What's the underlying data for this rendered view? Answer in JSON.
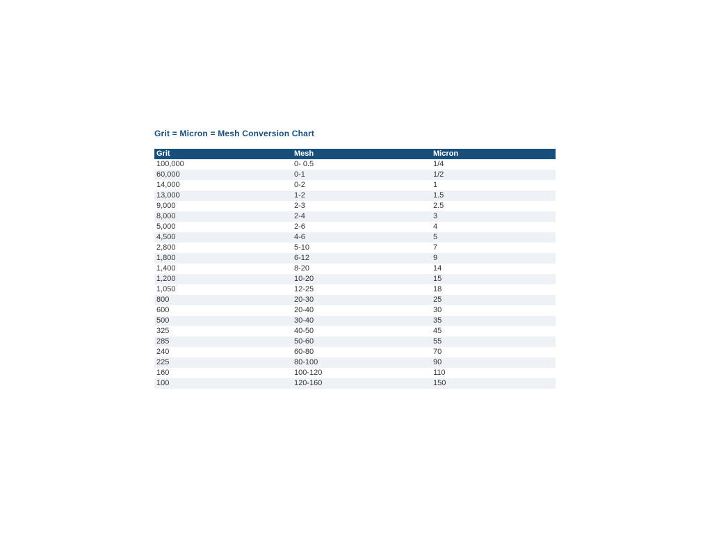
{
  "page": {
    "title": "Grit = Micron = Mesh Conversion Chart"
  },
  "colors": {
    "title_text": "#164e7c",
    "header_bg": "#164e7c",
    "header_text": "#ffffff",
    "row_bg": "#ffffff",
    "row_alt_bg": "#eef1f5",
    "body_text": "#333333",
    "page_bg": "#ffffff"
  },
  "chart_data": {
    "type": "table",
    "title": "Grit = Micron = Mesh Conversion Chart",
    "columns": [
      "Grit",
      "Mesh",
      "Micron"
    ],
    "column_keys": [
      "grit",
      "mesh",
      "micron"
    ],
    "rows": [
      [
        "100,000",
        "0- 0.5",
        "1/4"
      ],
      [
        "60,000",
        "0-1",
        "1/2"
      ],
      [
        "14,000",
        "0-2",
        "1"
      ],
      [
        "13,000",
        "1-2",
        "1.5"
      ],
      [
        "9,000",
        "2-3",
        "2.5"
      ],
      [
        "8,000",
        "2-4",
        "3"
      ],
      [
        "5,000",
        "2-6",
        "4"
      ],
      [
        "4,500",
        "4-6",
        "5"
      ],
      [
        "2,800",
        "5-10",
        "7"
      ],
      [
        "1,800",
        "6-12",
        "9"
      ],
      [
        "1,400",
        "8-20",
        "14"
      ],
      [
        "1,200",
        "10-20",
        "15"
      ],
      [
        "1,050",
        "12-25",
        "18"
      ],
      [
        "800",
        "20-30",
        "25"
      ],
      [
        "600",
        "20-40",
        "30"
      ],
      [
        "500",
        "30-40",
        "35"
      ],
      [
        "325",
        "40-50",
        "45"
      ],
      [
        "285",
        "50-60",
        "55"
      ],
      [
        "240",
        "60-80",
        "70"
      ],
      [
        "225",
        "80-100",
        "90"
      ],
      [
        "160",
        "100-120",
        "110"
      ],
      [
        "100",
        "120-160",
        "150"
      ]
    ]
  }
}
